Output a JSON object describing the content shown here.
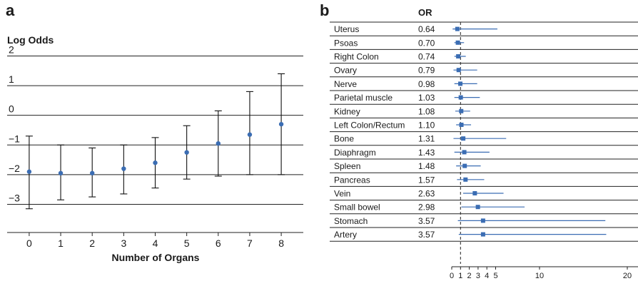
{
  "panel_a": {
    "letter": "a",
    "chart_data": {
      "type": "scatter",
      "title": "Log Odds",
      "xlabel": "Number of Organs",
      "ylabel": "Log Odds",
      "x": [
        0,
        1,
        2,
        3,
        4,
        5,
        6,
        7,
        8
      ],
      "xlim": [
        -0.7,
        8.7
      ],
      "ylim": [
        -3.95,
        2.3
      ],
      "yticks": [
        2,
        1,
        0,
        -1,
        -2,
        -3
      ],
      "ytick_labels": [
        "2",
        "1",
        "0",
        "−1",
        "−2",
        "−3"
      ],
      "grid": "horizontal",
      "series": [
        {
          "values": [
            -1.9,
            -1.95,
            -1.95,
            -1.8,
            -1.6,
            -1.25,
            -0.95,
            -0.65,
            -0.3
          ],
          "lower": [
            -3.15,
            -2.85,
            -2.75,
            -2.65,
            -2.45,
            -2.15,
            -2.05,
            -2.0,
            -2.0
          ],
          "upper": [
            -0.7,
            -1.0,
            -1.1,
            -1.0,
            -0.75,
            -0.35,
            0.15,
            0.8,
            1.4
          ],
          "color": "#3b6db3"
        }
      ]
    }
  },
  "panel_b": {
    "letter": "b",
    "or_header": "OR",
    "chart_data": {
      "type": "forest",
      "xlim": [
        0,
        20
      ],
      "xticks": [
        0,
        1,
        2,
        3,
        4,
        5,
        10,
        20
      ],
      "xtick_labels": [
        "0",
        "1",
        "2",
        "3",
        "4",
        "5",
        "10",
        "20"
      ],
      "reference_line": 1,
      "color": "#3b6db3",
      "rows": [
        {
          "label": "Uterus",
          "or_text": "0.64",
          "or": 0.64,
          "lo": 0.1,
          "hi": 5.2
        },
        {
          "label": "Psoas",
          "or_text": "0.70",
          "or": 0.7,
          "lo": 0.3,
          "hi": 1.4
        },
        {
          "label": "Right Colon",
          "or_text": "0.74",
          "or": 0.74,
          "lo": 0.3,
          "hi": 1.6
        },
        {
          "label": "Ovary",
          "or_text": "0.79",
          "or": 0.79,
          "lo": 0.2,
          "hi": 2.9
        },
        {
          "label": "Nerve",
          "or_text": "0.98",
          "or": 0.98,
          "lo": 0.3,
          "hi": 2.9
        },
        {
          "label": "Parietal muscle",
          "or_text": "1.03",
          "or": 1.03,
          "lo": 0.3,
          "hi": 3.2
        },
        {
          "label": "Kidney",
          "or_text": "1.08",
          "or": 1.08,
          "lo": 0.4,
          "hi": 2.1
        },
        {
          "label": "Left Colon/Rectum",
          "or_text": "1.10",
          "or": 1.1,
          "lo": 0.5,
          "hi": 2.2
        },
        {
          "label": "Bone",
          "or_text": "1.31",
          "or": 1.31,
          "lo": 0.2,
          "hi": 6.2
        },
        {
          "label": "Diaphragm",
          "or_text": "1.43",
          "or": 1.43,
          "lo": 0.3,
          "hi": 4.3
        },
        {
          "label": "Spleen",
          "or_text": "1.48",
          "or": 1.48,
          "lo": 0.5,
          "hi": 3.3
        },
        {
          "label": "Pancreas",
          "or_text": "1.57",
          "or": 1.57,
          "lo": 0.6,
          "hi": 3.7
        },
        {
          "label": "Vein",
          "or_text": "2.63",
          "or": 2.63,
          "lo": 1.3,
          "hi": 5.9
        },
        {
          "label": "Small bowel",
          "or_text": "2.98",
          "or": 2.98,
          "lo": 1.1,
          "hi": 8.3
        },
        {
          "label": "Stomach",
          "or_text": "3.57",
          "or": 3.57,
          "lo": 0.7,
          "hi": 17.5
        },
        {
          "label": "Artery",
          "or_text": "3.57",
          "or": 3.57,
          "lo": 0.8,
          "hi": 17.6
        }
      ]
    }
  }
}
